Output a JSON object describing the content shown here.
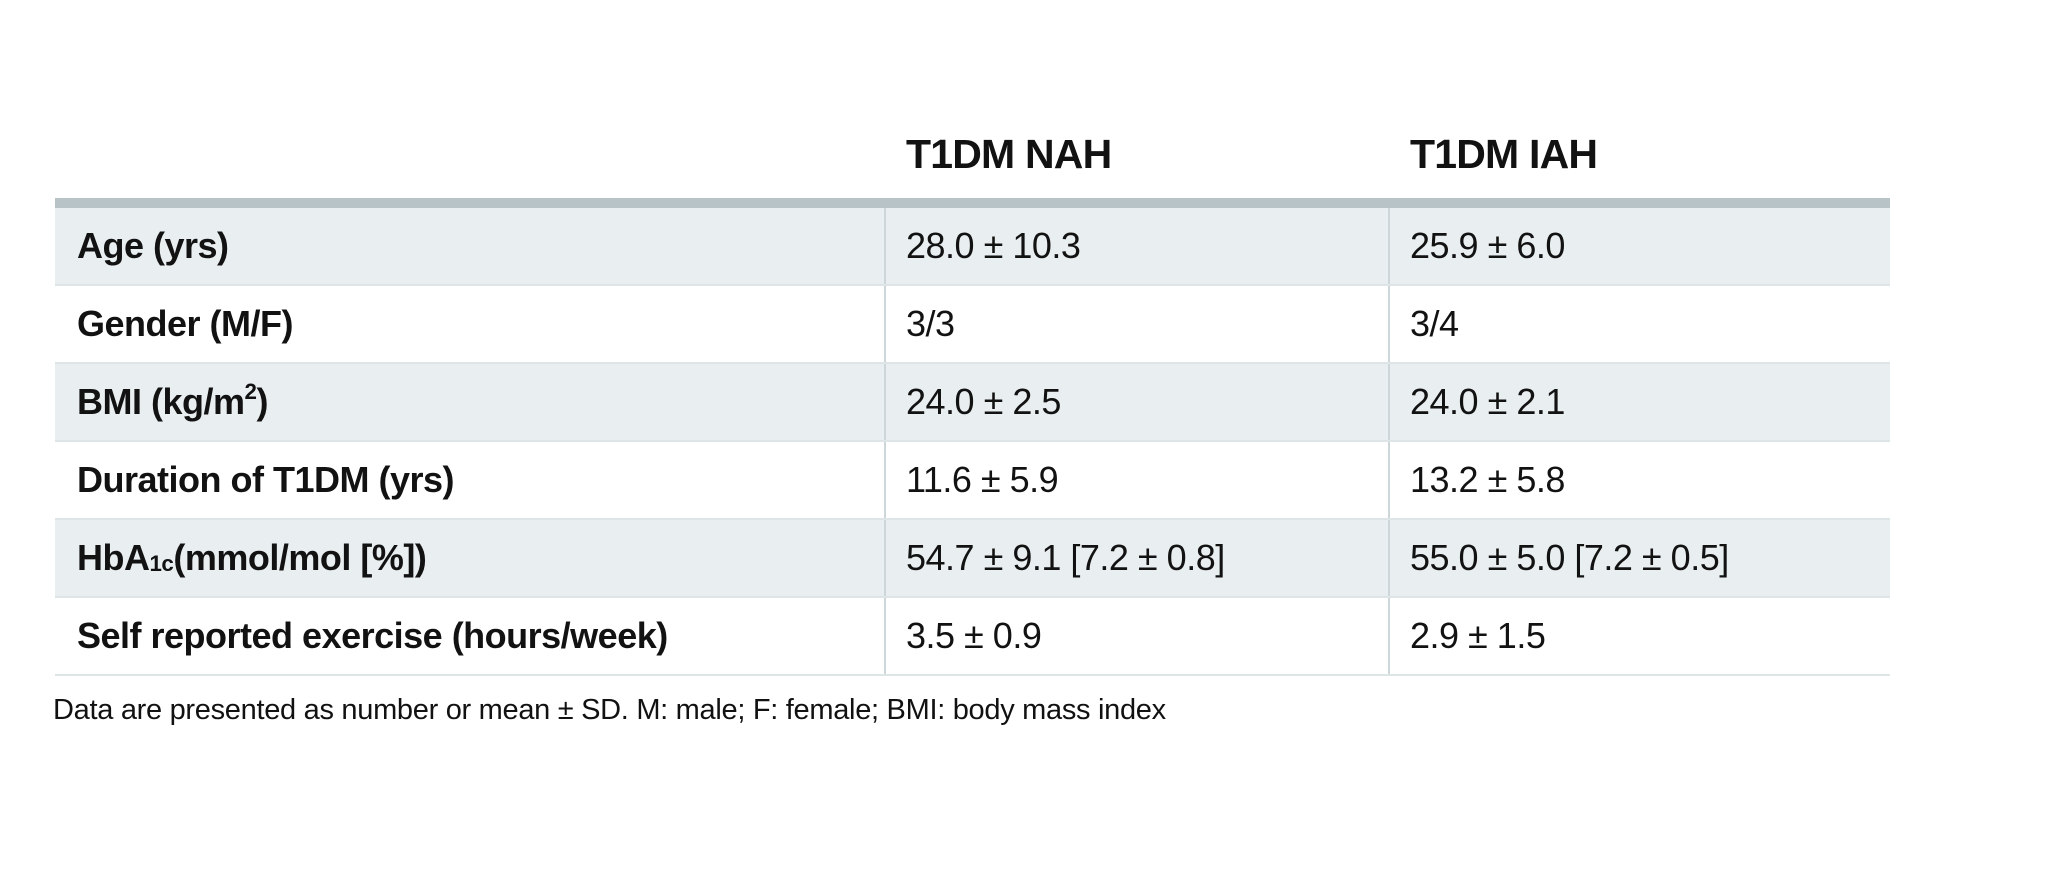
{
  "colors": {
    "background": "#ffffff",
    "row_shade": "#e9eef0",
    "table_top_border": "#b7c3c6",
    "row_separator": "#dde5e7",
    "column_divider": "#cdd7da",
    "text": "#121212"
  },
  "table": {
    "column_headers": [
      "T1DM NAH",
      "T1DM IAH"
    ],
    "rows": [
      {
        "label": "Age (yrs)",
        "values": [
          "28.0 ± 10.3",
          "25.9 ± 6.0"
        ]
      },
      {
        "label": "Gender (M/F)",
        "values": [
          "3/3",
          "3/4"
        ]
      },
      {
        "label": "BMI (kg/m",
        "label_sup": "2",
        "label_end": ")",
        "values": [
          "24.0 ± 2.5",
          "24.0 ± 2.1"
        ]
      },
      {
        "label": "Duration of T1DM (yrs)",
        "values": [
          "11.6 ± 5.9",
          "13.2 ± 5.8"
        ]
      },
      {
        "label": "HbA",
        "label_sub": "1c",
        "label_end": " (mmol/mol [%])",
        "values": [
          "54.7 ± 9.1 [7.2 ± 0.8]",
          "55.0 ± 5.0 [7.2 ± 0.5]"
        ]
      },
      {
        "label": "Self reported exercise (hours/week)",
        "values": [
          "3.5 ± 0.9",
          "2.9 ± 1.5"
        ]
      }
    ],
    "footnote": "Data are presented as number or mean ± SD. M: male; F: female; BMI: body mass index"
  },
  "chart_data": {
    "type": "table",
    "columns": [
      "",
      "T1DM NAH",
      "T1DM IAH"
    ],
    "rows": [
      [
        "Age (yrs)",
        "28.0 ± 10.3",
        "25.9 ± 6.0"
      ],
      [
        "Gender (M/F)",
        "3/3",
        "3/4"
      ],
      [
        "BMI (kg/m2)",
        "24.0 ± 2.5",
        "24.0 ± 2.1"
      ],
      [
        "Duration of T1DM (yrs)",
        "11.6 ± 5.9",
        "13.2 ± 5.8"
      ],
      [
        "HbA1c (mmol/mol [%])",
        "54.7 ± 9.1 [7.2 ± 0.8]",
        "55.0 ± 5.0 [7.2 ± 0.5]"
      ],
      [
        "Self reported exercise (hours/week)",
        "3.5 ± 0.9",
        "2.9 ± 1.5"
      ]
    ],
    "footnote": "Data are presented as number or mean ± SD. M: male; F: female; BMI: body mass index"
  }
}
